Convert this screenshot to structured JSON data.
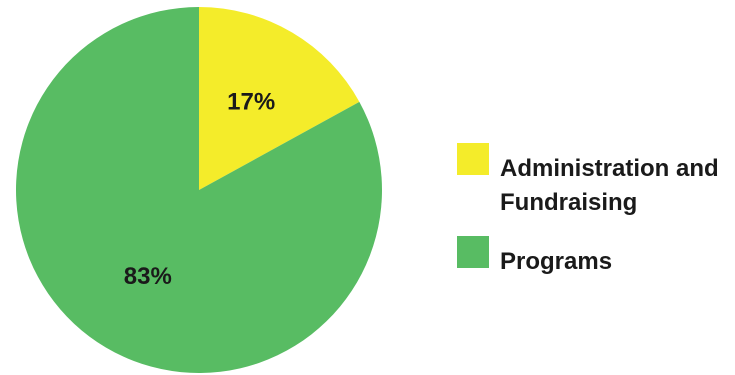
{
  "chart_data": {
    "type": "pie",
    "slices": [
      {
        "label": "Administration and Fundraising",
        "value": 17,
        "display": "17%",
        "color": "#f4ec2a"
      },
      {
        "label": "Programs",
        "value": 83,
        "display": "83%",
        "color": "#58bc63"
      }
    ],
    "start_angle": "12 o'clock",
    "direction": "clockwise",
    "legend_position": "right"
  }
}
